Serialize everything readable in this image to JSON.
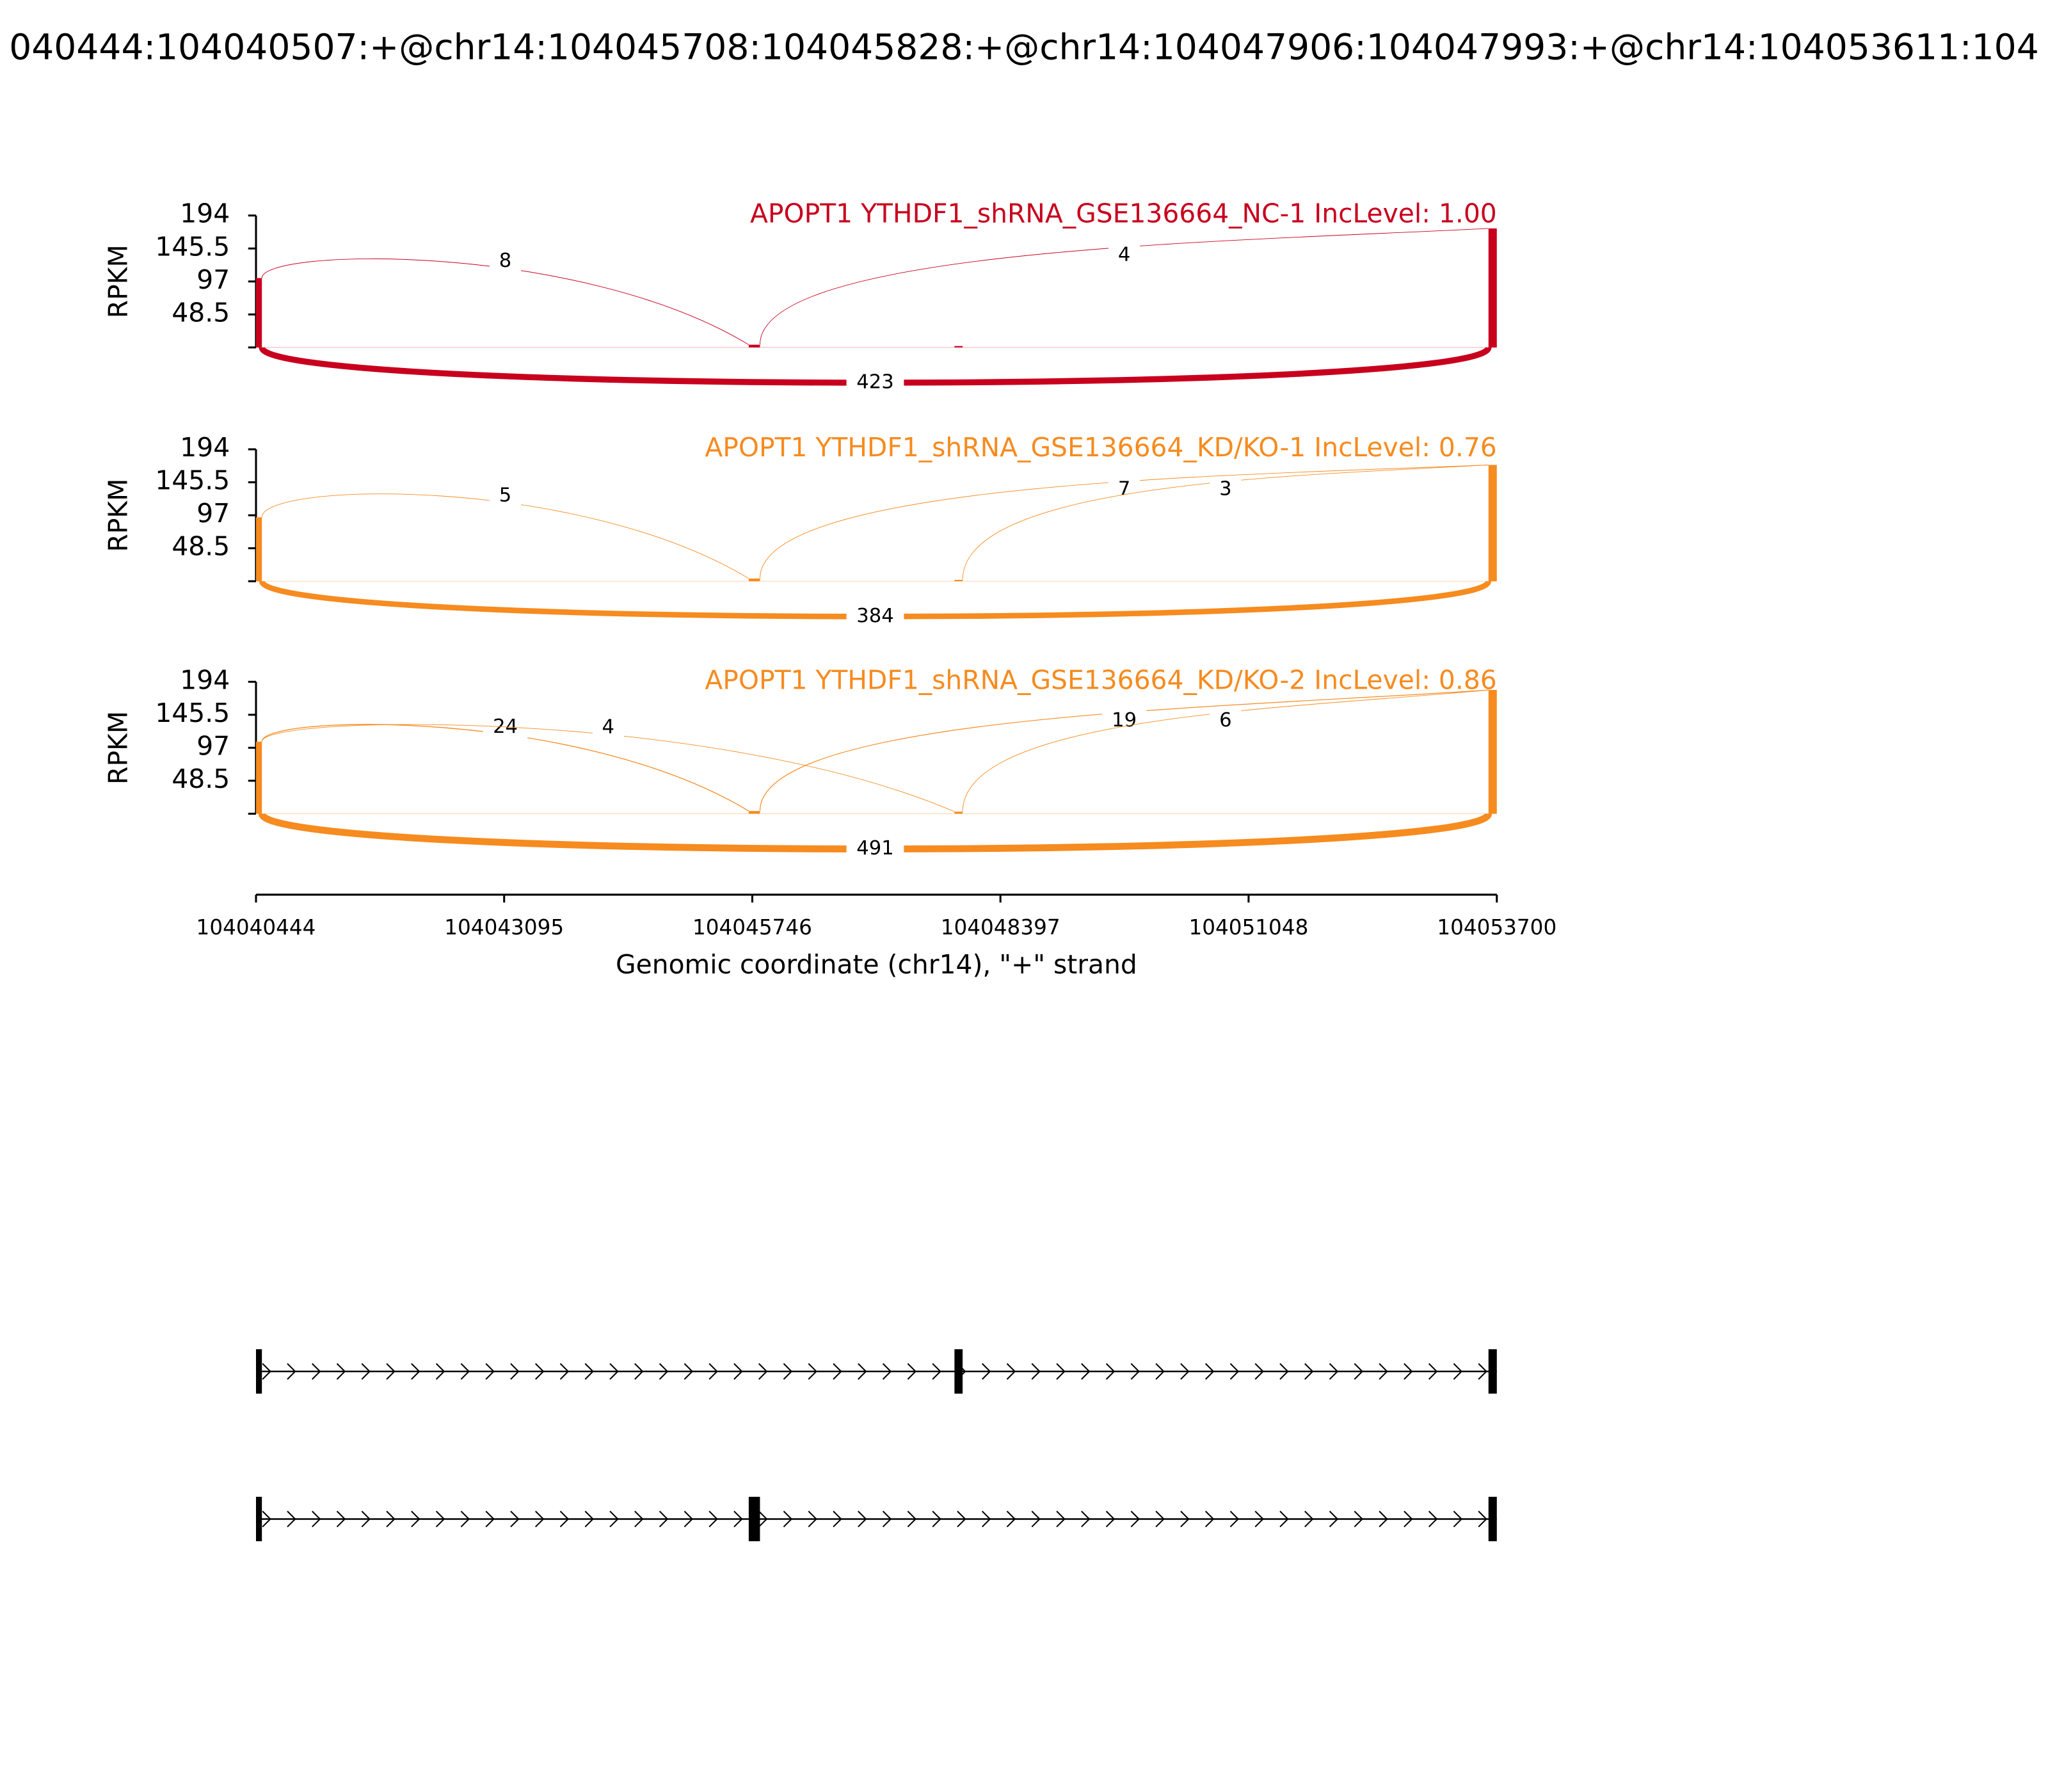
{
  "title": "040444:104040507:+@chr14:104045708:104045828:+@chr14:104047906:104047993:+@chr14:104053611:104",
  "exons": [
    [
      104040444,
      104040507
    ],
    [
      104045708,
      104045828
    ],
    [
      104047906,
      104047993
    ],
    [
      104053611,
      104053700
    ]
  ],
  "x_axis": {
    "label": "Genomic coordinate (chr14), \"+\" strand",
    "xlim": [
      104040444,
      104053700
    ],
    "xticks": [
      104040444,
      104043095,
      104045746,
      104048397,
      104051048,
      104053700
    ]
  },
  "chart_data": [
    {
      "type": "sashimi",
      "title": "APOPT1 YTHDF1_shRNA_GSE136664_NC-1 IncLevel: 1.00",
      "color": "#c8001e",
      "ylabel": "RPKM",
      "ylim": [
        0,
        194
      ],
      "yticks": [
        48.5,
        97,
        145.5,
        194
      ],
      "coverage": [
        102,
        4,
        2,
        175
      ],
      "junctions": [
        {
          "start": 104040507,
          "end": 104045708,
          "count": 8
        },
        {
          "start": 104045828,
          "end": 104053611,
          "count": 4
        },
        {
          "start": 104040507,
          "end": 104053611,
          "count": 423
        }
      ]
    },
    {
      "type": "sashimi",
      "title": "APOPT1 YTHDF1_shRNA_GSE136664_KD/KO-1 IncLevel: 0.76",
      "color": "#f68b1f",
      "ylabel": "RPKM",
      "ylim": [
        0,
        194
      ],
      "yticks": [
        48.5,
        97,
        145.5,
        194
      ],
      "coverage": [
        94,
        4,
        2,
        171
      ],
      "junctions": [
        {
          "start": 104040507,
          "end": 104045708,
          "count": 5
        },
        {
          "start": 104045828,
          "end": 104053611,
          "count": 7
        },
        {
          "start": 104047993,
          "end": 104053611,
          "count": 3
        },
        {
          "start": 104040507,
          "end": 104053611,
          "count": 384
        }
      ]
    },
    {
      "type": "sashimi",
      "title": "APOPT1 YTHDF1_shRNA_GSE136664_KD/KO-2 IncLevel: 0.86",
      "color": "#f68b1f",
      "ylabel": "RPKM",
      "ylim": [
        0,
        194
      ],
      "yticks": [
        48.5,
        97,
        145.5,
        194
      ],
      "coverage": [
        106,
        4,
        3,
        182
      ],
      "junctions": [
        {
          "start": 104040507,
          "end": 104045708,
          "count": 24
        },
        {
          "start": 104040507,
          "end": 104047906,
          "count": 4
        },
        {
          "start": 104045828,
          "end": 104053611,
          "count": 19
        },
        {
          "start": 104047993,
          "end": 104053611,
          "count": 6
        },
        {
          "start": 104040507,
          "end": 104053611,
          "count": 491
        }
      ]
    }
  ],
  "isoforms": [
    {
      "exons": [
        [
          104040444,
          104040507
        ],
        [
          104047906,
          104047993
        ],
        [
          104053611,
          104053700
        ]
      ]
    },
    {
      "exons": [
        [
          104040444,
          104040507
        ],
        [
          104045708,
          104045828
        ],
        [
          104053611,
          104053700
        ]
      ]
    }
  ]
}
